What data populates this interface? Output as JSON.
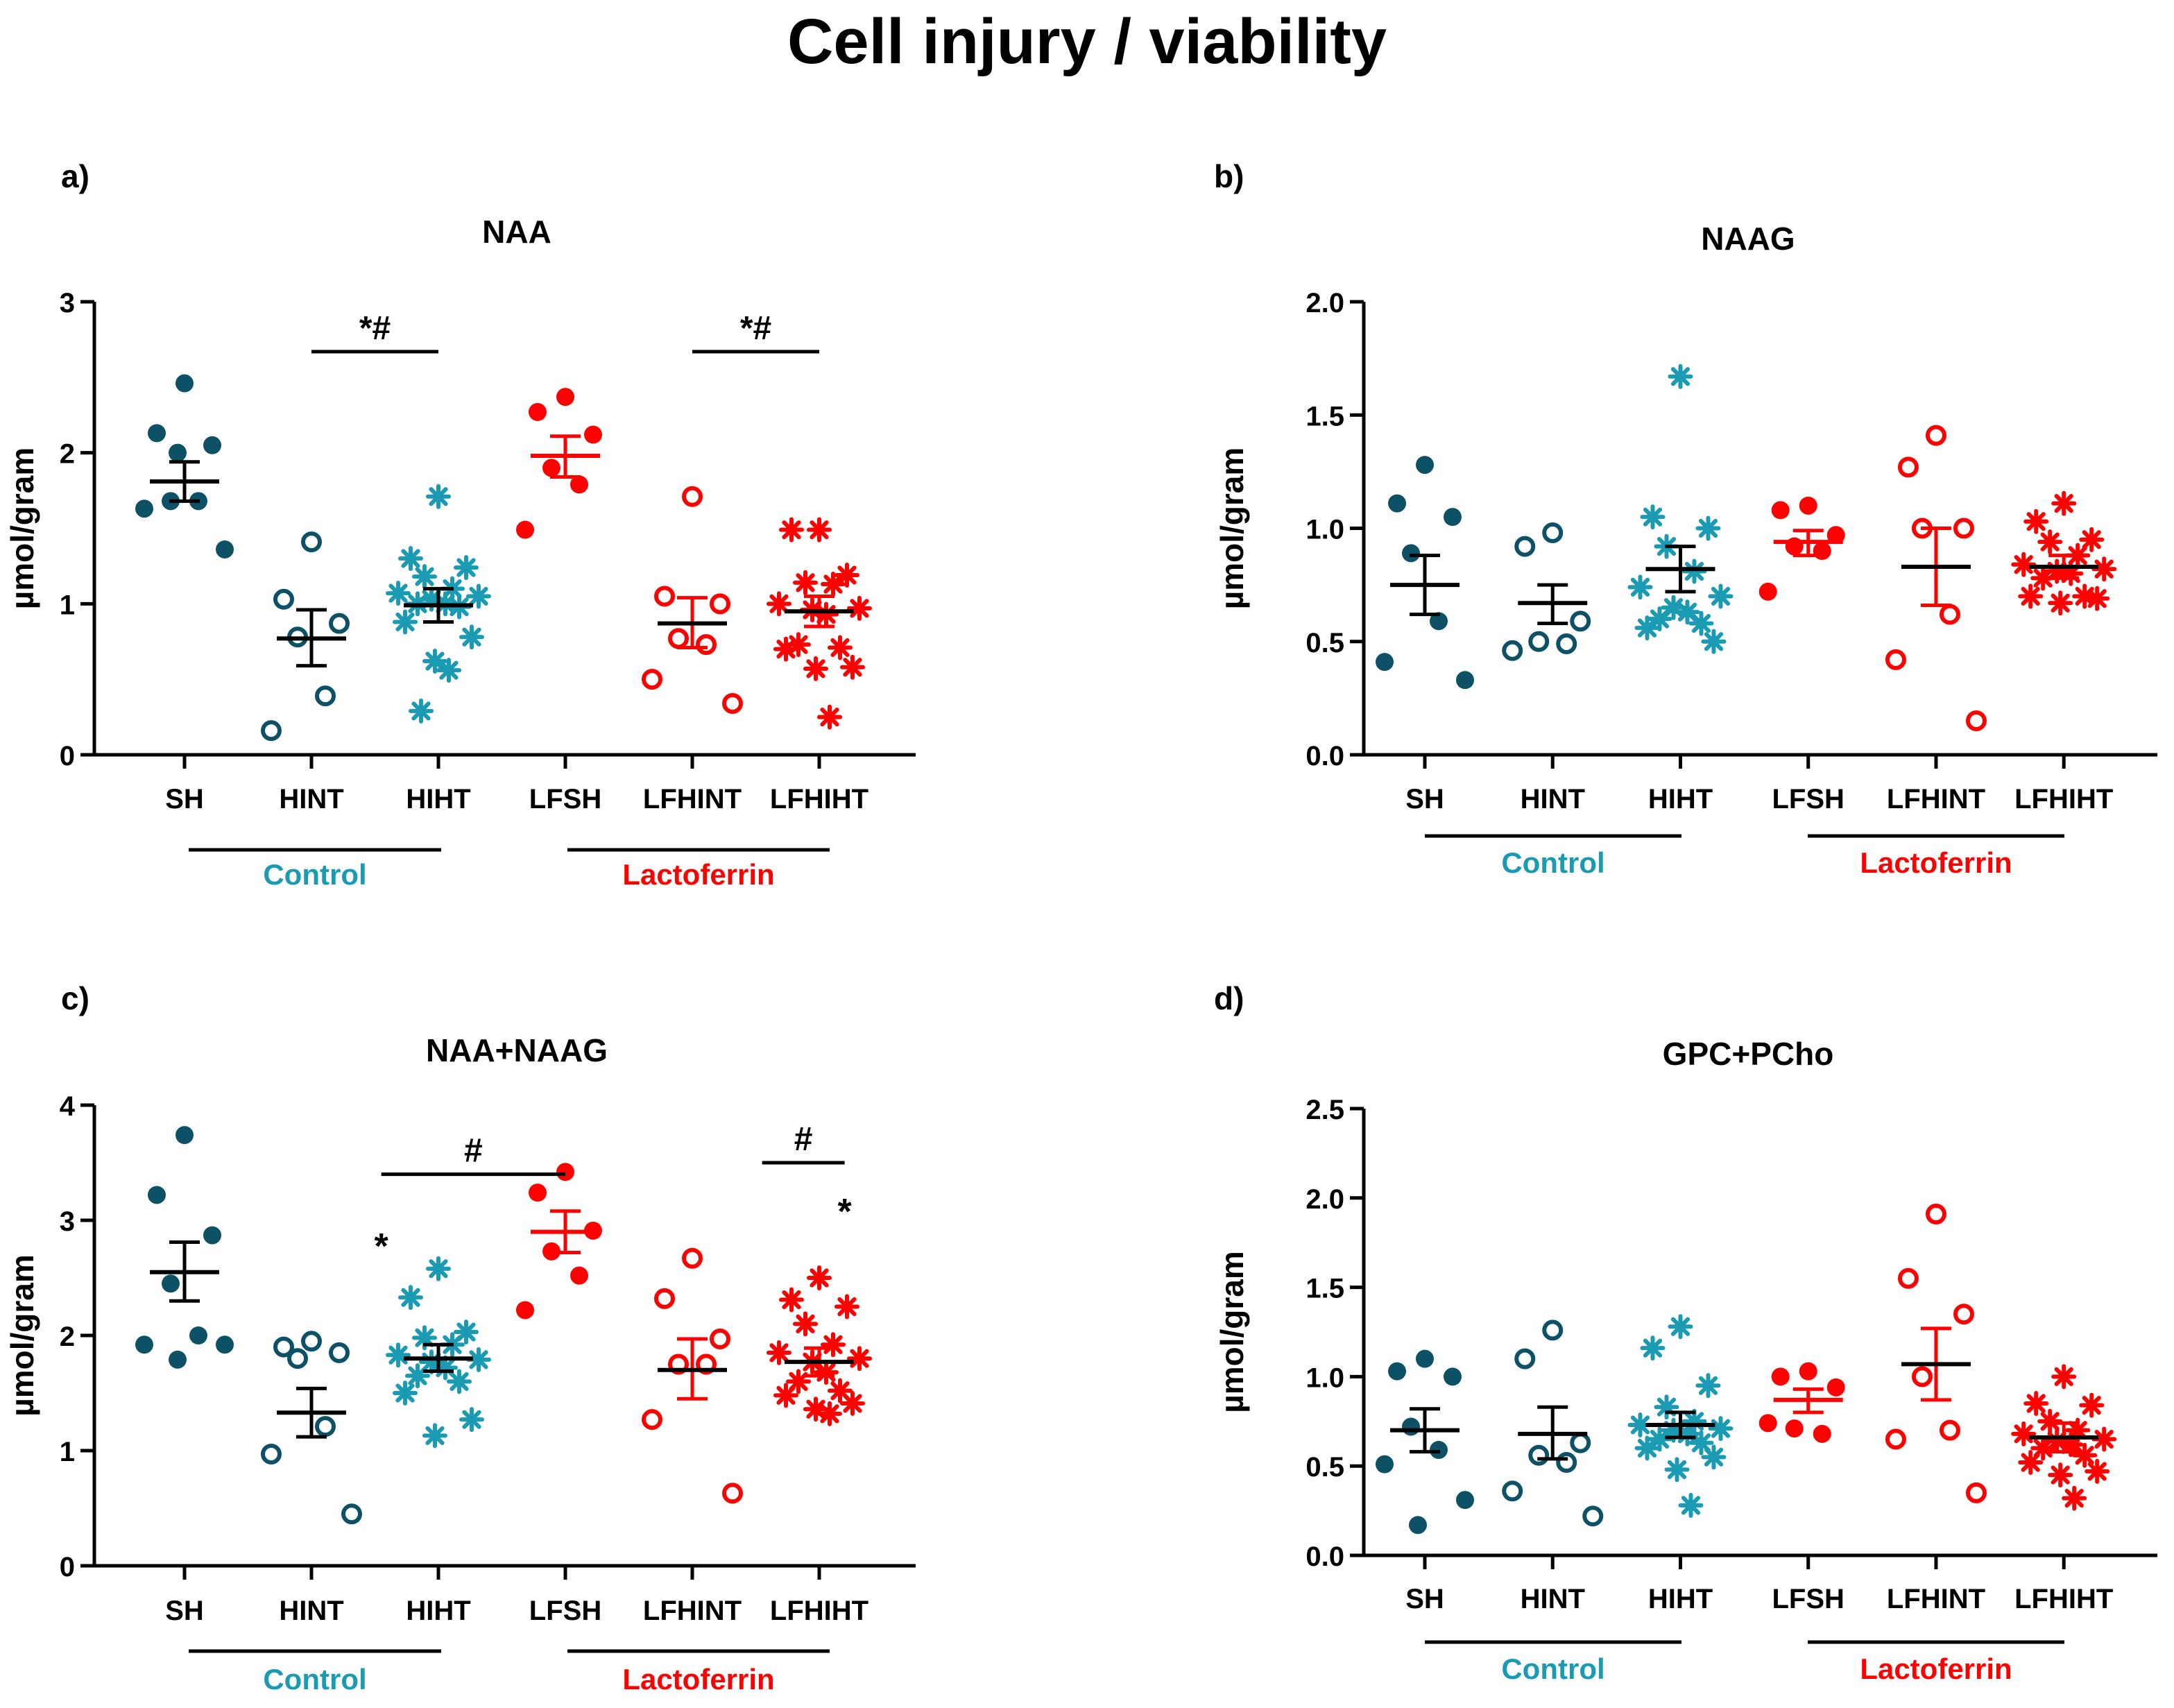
{
  "title": "Cell injury / viability",
  "colors": {
    "sh": "#0c5165",
    "hiht": "#1a9ab3",
    "lact": "#ff0000",
    "control_label": "#1a9ab3",
    "lactoferrin_label": "#ff0000",
    "black": "#000000"
  },
  "chart_data": [
    {
      "id": "a",
      "type": "scatter",
      "panel_label": "a)",
      "title": "NAA",
      "ylabel": "µmol/gram",
      "ylim": [
        0,
        3
      ],
      "yticks": [
        0,
        1,
        2,
        3
      ],
      "ytick_labels": [
        "0",
        "1",
        "2",
        "3"
      ],
      "categories": [
        "SH",
        "HINT",
        "HIHT",
        "LFSH",
        "LFHINT",
        "LFHIHT"
      ],
      "group_labels": [
        "Control",
        "Lactoferrin"
      ],
      "series": [
        {
          "name": "SH",
          "marker": "filled-circle",
          "color": "sh",
          "points": [
            2.46,
            2.13,
            2.05,
            1.68,
            1.68,
            1.63,
            1.36,
            2.0
          ],
          "mean": 1.81,
          "sem_low": 1.68,
          "sem_high": 1.94
        },
        {
          "name": "HINT",
          "marker": "open-circle",
          "color": "sh",
          "points": [
            1.41,
            1.03,
            0.87,
            0.78,
            0.39,
            0.16
          ],
          "mean": 0.77,
          "sem_low": 0.59,
          "sem_high": 0.96
        },
        {
          "name": "HIHT",
          "marker": "asterisk",
          "color": "hiht",
          "points": [
            1.71,
            1.3,
            1.24,
            1.18,
            1.1,
            1.07,
            1.05,
            1.03,
            1.0,
            1.0,
            0.98,
            0.88,
            0.78,
            0.62,
            0.56,
            0.29
          ],
          "mean": 0.99,
          "sem_low": 0.88,
          "sem_high": 1.1
        },
        {
          "name": "LFSH",
          "marker": "filled-circle",
          "color": "lact",
          "points": [
            2.37,
            2.27,
            2.12,
            1.9,
            1.79,
            1.49
          ],
          "mean": 1.98,
          "sem_low": 1.84,
          "sem_high": 2.11
        },
        {
          "name": "LFHINT",
          "marker": "open-circle",
          "color": "lact",
          "points": [
            1.71,
            1.05,
            1.0,
            0.77,
            0.73,
            0.5,
            0.34
          ],
          "mean": 0.87,
          "sem_low": 0.71,
          "sem_high": 1.04
        },
        {
          "name": "LFHIHT",
          "marker": "asterisk",
          "color": "lact",
          "points": [
            1.49,
            1.49,
            1.19,
            1.14,
            1.13,
            1.0,
            0.97,
            0.96,
            0.93,
            0.73,
            0.71,
            0.7,
            0.58,
            0.57,
            0.25
          ],
          "mean": 0.95,
          "sem_low": 0.85,
          "sem_high": 1.05
        }
      ],
      "annotations": [
        {
          "text": "*#",
          "from": 1,
          "to": 2,
          "y": 2.67,
          "bracket": true
        },
        {
          "text": "*#",
          "from": 4,
          "to": 5,
          "y": 2.67,
          "bracket": true
        }
      ]
    },
    {
      "id": "b",
      "type": "scatter",
      "panel_label": "b)",
      "title": "NAAG",
      "ylabel": "µmol/gram",
      "ylim": [
        0,
        2.0
      ],
      "yticks": [
        0,
        0.5,
        1.0,
        1.5,
        2.0
      ],
      "ytick_labels": [
        "0.0",
        "0.5",
        "1.0",
        "1.5",
        "2.0"
      ],
      "categories": [
        "SH",
        "HINT",
        "HIHT",
        "LFSH",
        "LFHINT",
        "LFHIHT"
      ],
      "group_labels": [
        "Control",
        "Lactoferrin"
      ],
      "series": [
        {
          "name": "SH",
          "marker": "filled-circle",
          "color": "sh",
          "points": [
            1.28,
            1.11,
            1.05,
            0.89,
            0.59,
            0.41,
            0.33
          ],
          "mean": 0.75,
          "sem_low": 0.62,
          "sem_high": 0.88
        },
        {
          "name": "HINT",
          "marker": "open-circle",
          "color": "sh",
          "points": [
            0.98,
            0.92,
            0.59,
            0.5,
            0.49,
            0.46
          ],
          "mean": 0.67,
          "sem_low": 0.58,
          "sem_high": 0.75
        },
        {
          "name": "HIHT",
          "marker": "asterisk",
          "color": "hiht",
          "points": [
            1.67,
            1.05,
            1.0,
            0.92,
            0.81,
            0.74,
            0.7,
            0.65,
            0.63,
            0.6,
            0.58,
            0.56,
            0.5
          ],
          "mean": 0.82,
          "sem_low": 0.72,
          "sem_high": 0.92
        },
        {
          "name": "LFSH",
          "marker": "filled-circle",
          "color": "lact",
          "points": [
            1.1,
            1.08,
            0.97,
            0.92,
            0.9,
            0.72
          ],
          "mean": 0.94,
          "sem_low": 0.88,
          "sem_high": 0.99
        },
        {
          "name": "LFHINT",
          "marker": "open-circle",
          "color": "lact",
          "points": [
            1.41,
            1.27,
            1.0,
            1.0,
            0.62,
            0.42,
            0.15
          ],
          "mean": 0.83,
          "sem_low": 0.66,
          "sem_high": 1.0
        },
        {
          "name": "LFHIHT",
          "marker": "asterisk",
          "color": "lact",
          "points": [
            1.11,
            1.03,
            0.95,
            0.94,
            0.88,
            0.84,
            0.82,
            0.81,
            0.8,
            0.78,
            0.7,
            0.7,
            0.69,
            0.67
          ],
          "mean": 0.83,
          "sem_low": 0.78,
          "sem_high": 0.88
        }
      ],
      "annotations": []
    },
    {
      "id": "c",
      "type": "scatter",
      "panel_label": "c)",
      "title": "NAA+NAAG",
      "ylabel": "µmol/gram",
      "ylim": [
        0,
        4
      ],
      "yticks": [
        0,
        1,
        2,
        3,
        4
      ],
      "ytick_labels": [
        "0",
        "1",
        "2",
        "3",
        "4"
      ],
      "categories": [
        "SH",
        "HINT",
        "HIHT",
        "LFSH",
        "LFHINT",
        "LFHIHT"
      ],
      "group_labels": [
        "Control",
        "Lactoferrin"
      ],
      "series": [
        {
          "name": "SH",
          "marker": "filled-circle",
          "color": "sh",
          "points": [
            3.74,
            3.22,
            2.87,
            2.45,
            2.0,
            1.92,
            1.92,
            1.79
          ],
          "mean": 2.55,
          "sem_low": 2.3,
          "sem_high": 2.81
        },
        {
          "name": "HINT",
          "marker": "open-circle",
          "color": "sh",
          "points": [
            1.95,
            1.9,
            1.85,
            1.8,
            1.21,
            0.97,
            0.45
          ],
          "mean": 1.33,
          "sem_low": 1.12,
          "sem_high": 1.54
        },
        {
          "name": "HIHT",
          "marker": "asterisk",
          "color": "hiht",
          "points": [
            2.58,
            2.33,
            2.03,
            1.98,
            1.92,
            1.83,
            1.79,
            1.77,
            1.72,
            1.65,
            1.6,
            1.5,
            1.27,
            1.13
          ],
          "mean": 1.8,
          "sem_low": 1.69,
          "sem_high": 1.92
        },
        {
          "name": "LFSH",
          "marker": "filled-circle",
          "color": "lact",
          "points": [
            3.42,
            3.24,
            2.91,
            2.73,
            2.52,
            2.22
          ],
          "mean": 2.9,
          "sem_low": 2.72,
          "sem_high": 3.08
        },
        {
          "name": "LFHINT",
          "marker": "open-circle",
          "color": "lact",
          "points": [
            2.67,
            2.32,
            1.97,
            1.75,
            1.75,
            1.27,
            0.63
          ],
          "mean": 1.7,
          "sem_low": 1.45,
          "sem_high": 1.97
        },
        {
          "name": "LFHIHT",
          "marker": "asterisk",
          "color": "lact",
          "points": [
            2.5,
            2.31,
            2.25,
            2.1,
            1.92,
            1.85,
            1.8,
            1.77,
            1.68,
            1.6,
            1.52,
            1.48,
            1.41,
            1.36,
            1.32
          ],
          "mean": 1.77,
          "sem_low": 1.65,
          "sem_high": 1.89
        }
      ],
      "annotations": [
        {
          "text": "#",
          "from": 1.55,
          "to": 3.0,
          "y": 3.4,
          "bracket": true
        },
        {
          "text": "#",
          "from": 4.55,
          "to": 5.2,
          "y": 3.5,
          "bracket": true
        },
        {
          "text": "*",
          "at": 1.55,
          "y": 2.85,
          "bracket": false
        },
        {
          "text": "*",
          "at": 5.2,
          "y": 3.15,
          "bracket": false
        }
      ]
    },
    {
      "id": "d",
      "type": "scatter",
      "panel_label": "d)",
      "title": "GPC+PCho",
      "ylabel": "µmol/gram",
      "ylim": [
        0,
        2.5
      ],
      "yticks": [
        0,
        0.5,
        1.0,
        1.5,
        2.0,
        2.5
      ],
      "ytick_labels": [
        "0.0",
        "0.5",
        "1.0",
        "1.5",
        "2.0",
        "2.5"
      ],
      "categories": [
        "SH",
        "HINT",
        "HIHT",
        "LFSH",
        "LFHINT",
        "LFHIHT"
      ],
      "group_labels": [
        "Control",
        "Lactoferrin"
      ],
      "series": [
        {
          "name": "SH",
          "marker": "filled-circle",
          "color": "sh",
          "points": [
            1.1,
            1.03,
            1.0,
            0.72,
            0.59,
            0.51,
            0.31,
            0.17
          ],
          "mean": 0.7,
          "sem_low": 0.58,
          "sem_high": 0.82
        },
        {
          "name": "HINT",
          "marker": "open-circle",
          "color": "sh",
          "points": [
            1.26,
            1.1,
            0.63,
            0.56,
            0.52,
            0.36,
            0.22
          ],
          "mean": 0.68,
          "sem_low": 0.54,
          "sem_high": 0.83
        },
        {
          "name": "HIHT",
          "marker": "asterisk",
          "color": "hiht",
          "points": [
            1.28,
            1.16,
            0.95,
            0.83,
            0.75,
            0.73,
            0.71,
            0.7,
            0.68,
            0.65,
            0.63,
            0.6,
            0.55,
            0.48,
            0.28
          ],
          "mean": 0.73,
          "sem_low": 0.66,
          "sem_high": 0.8
        },
        {
          "name": "LFSH",
          "marker": "filled-circle",
          "color": "lact",
          "points": [
            1.03,
            1.0,
            0.94,
            0.71,
            0.68,
            0.74
          ],
          "mean": 0.87,
          "sem_low": 0.8,
          "sem_high": 0.93
        },
        {
          "name": "LFHINT",
          "marker": "open-circle",
          "color": "lact",
          "points": [
            1.91,
            1.55,
            1.35,
            1.0,
            0.7,
            0.65,
            0.35
          ],
          "mean": 1.07,
          "sem_low": 0.87,
          "sem_high": 1.27
        },
        {
          "name": "LFHIHT",
          "marker": "asterisk",
          "color": "lact",
          "points": [
            1.0,
            0.85,
            0.84,
            0.75,
            0.7,
            0.68,
            0.65,
            0.64,
            0.62,
            0.6,
            0.56,
            0.52,
            0.47,
            0.45,
            0.32
          ],
          "mean": 0.66,
          "sem_low": 0.58,
          "sem_high": 0.74
        }
      ],
      "annotations": []
    }
  ]
}
